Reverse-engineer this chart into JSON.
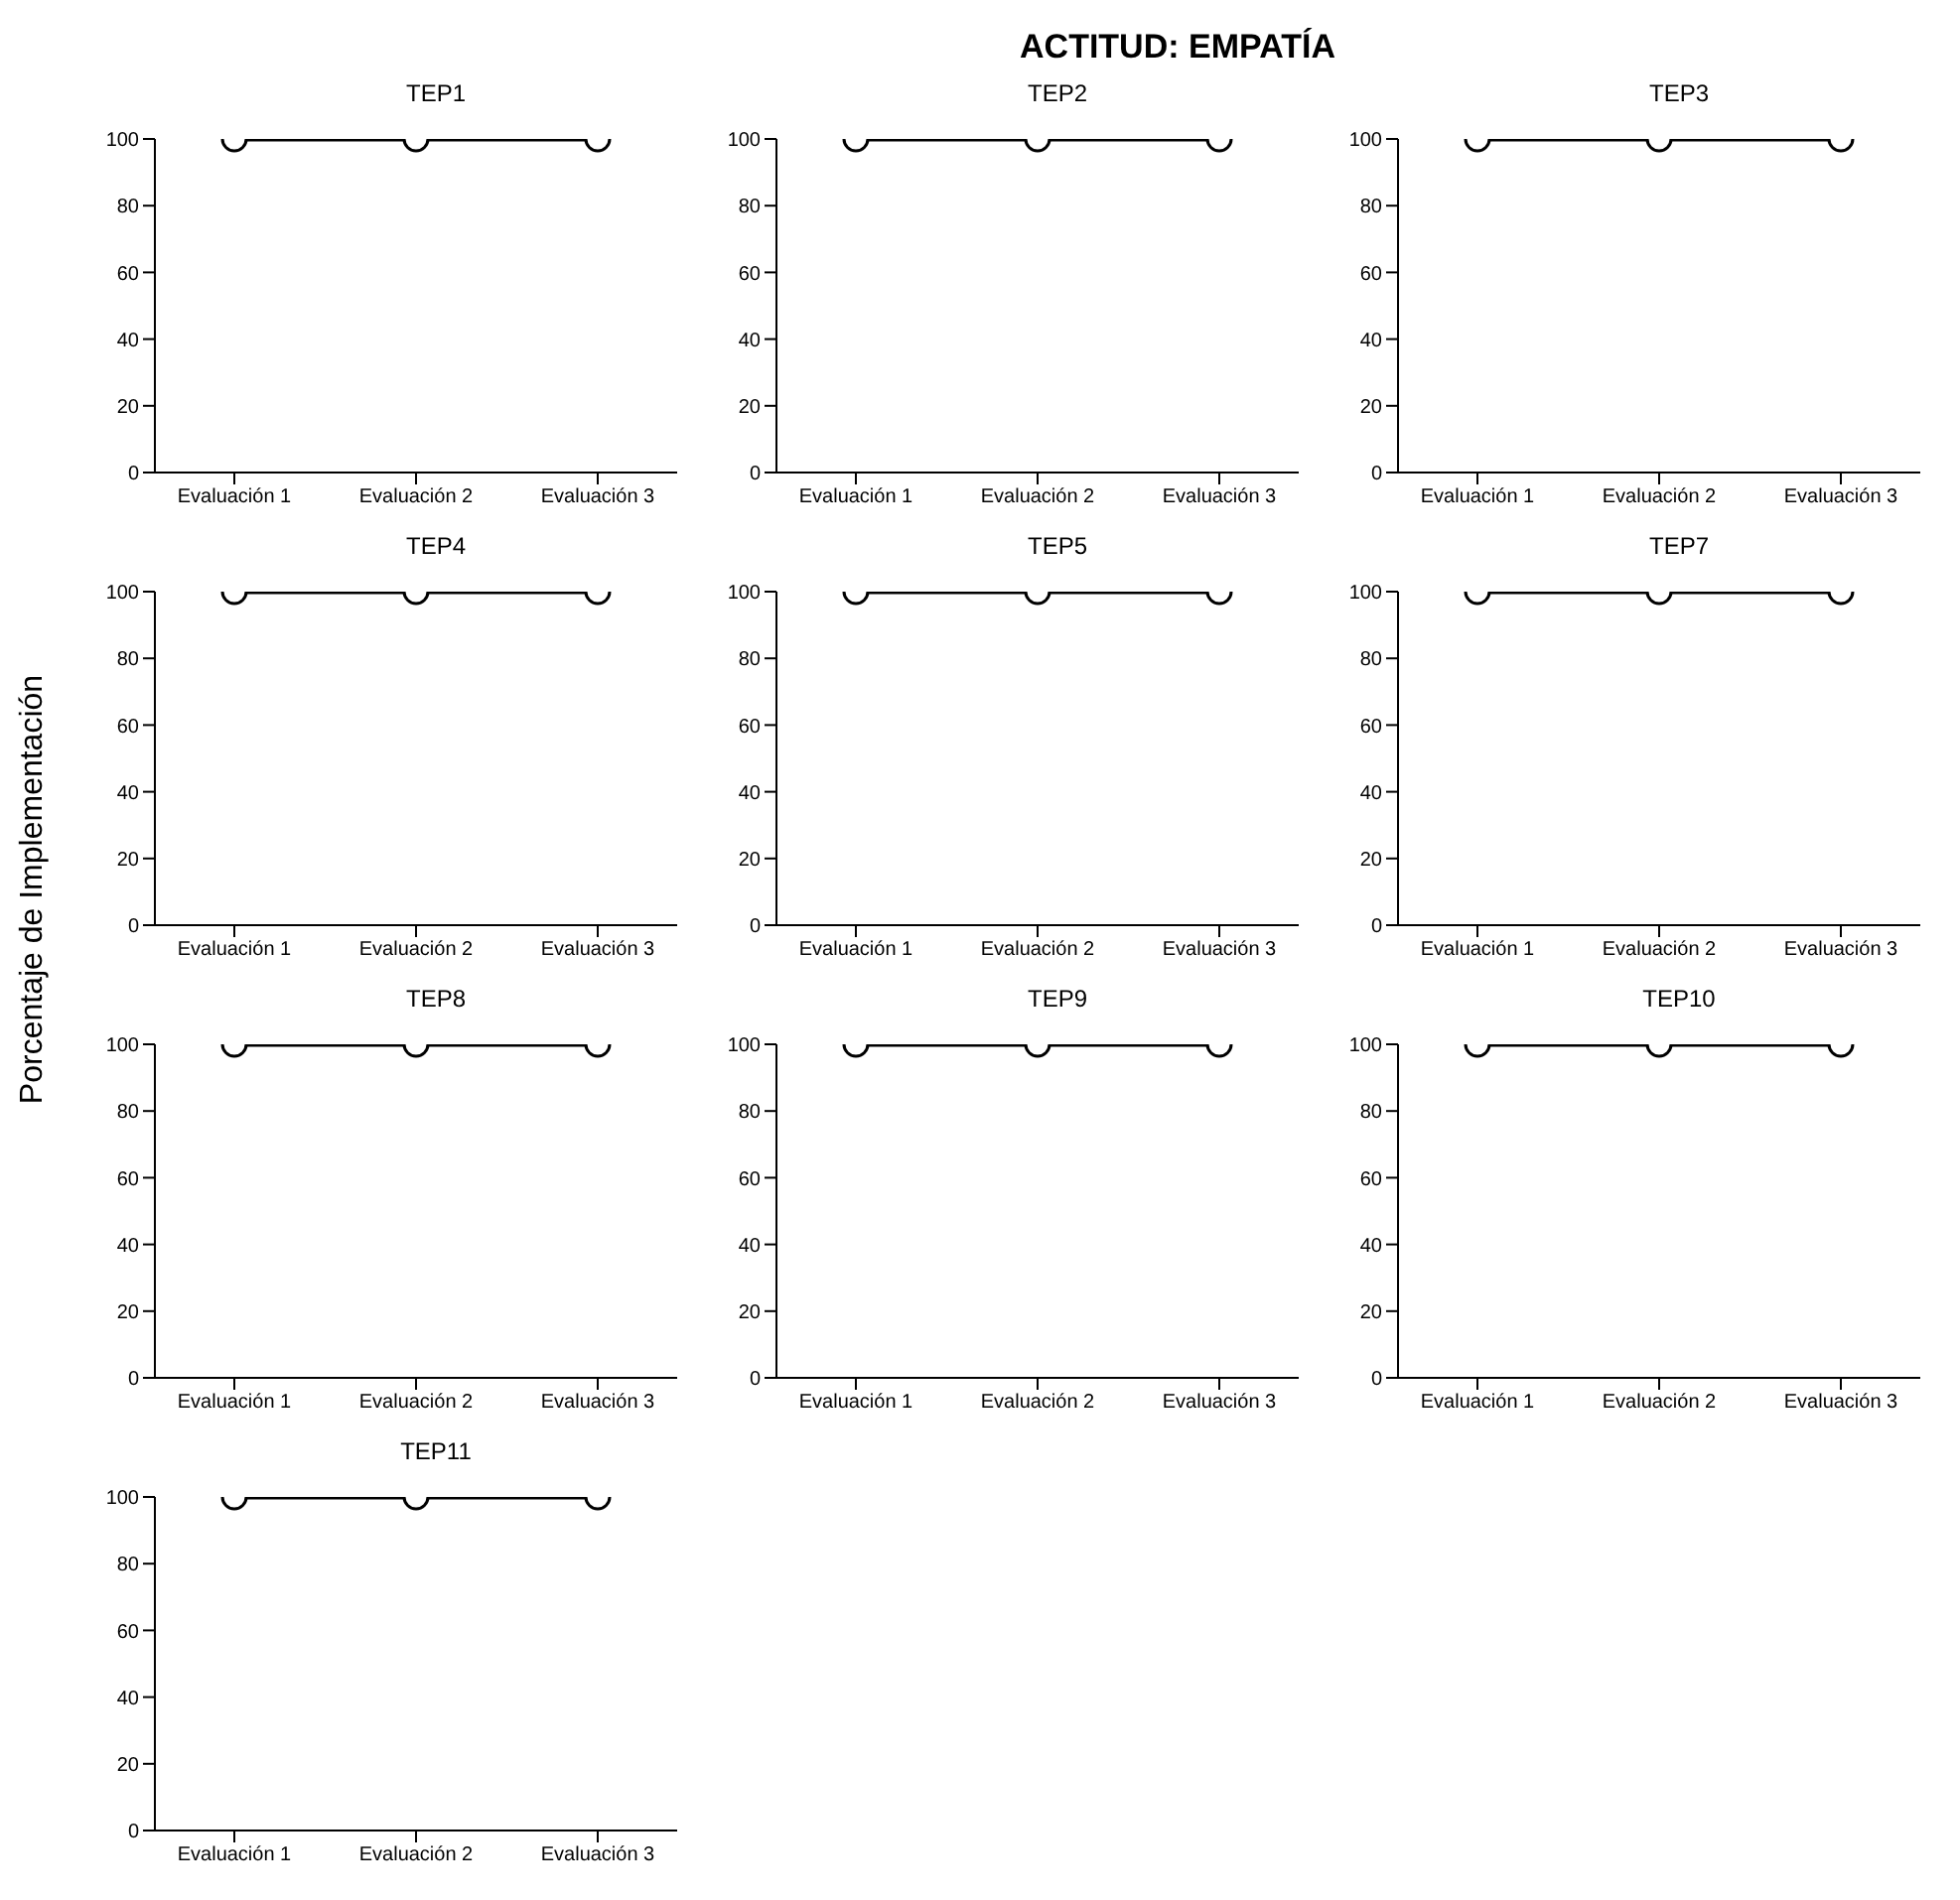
{
  "chart_data": [
    {
      "type": "other",
      "title": "ACTITUD: EMPATÍA",
      "ylabel": "Porcentaje de Implementación"
    },
    {
      "type": "line",
      "title": "TEP1",
      "categories": [
        "Evaluación 1",
        "Evaluación 2",
        "Evaluación 3"
      ],
      "ylim": [
        0,
        100
      ],
      "yticks": [
        0,
        20,
        40,
        60,
        80,
        100
      ],
      "marker": "circle",
      "series": [
        {
          "color": "#000000",
          "values": [
            100,
            100,
            100
          ]
        }
      ]
    },
    {
      "type": "line",
      "title": "TEP2",
      "categories": [
        "Evaluación 1",
        "Evaluación 2",
        "Evaluación 3"
      ],
      "ylim": [
        0,
        100
      ],
      "yticks": [
        0,
        20,
        40,
        60,
        80,
        100
      ],
      "marker": "circle",
      "series": [
        {
          "color": "#000000",
          "values": [
            100,
            100,
            100
          ]
        }
      ]
    },
    {
      "type": "line",
      "title": "TEP3",
      "categories": [
        "Evaluación 1",
        "Evaluación 2",
        "Evaluación 3"
      ],
      "ylim": [
        0,
        100
      ],
      "yticks": [
        0,
        20,
        40,
        60,
        80,
        100
      ],
      "marker": "circle",
      "series": [
        {
          "color": "#000000",
          "values": [
            100,
            100,
            100
          ]
        }
      ]
    },
    {
      "type": "line",
      "title": "TEP4",
      "categories": [
        "Evaluación 1",
        "Evaluación 2",
        "Evaluación 3"
      ],
      "ylim": [
        0,
        100
      ],
      "yticks": [
        0,
        20,
        40,
        60,
        80,
        100
      ],
      "marker": "circle",
      "series": [
        {
          "color": "#000000",
          "values": [
            100,
            100,
            100
          ]
        }
      ]
    },
    {
      "type": "line",
      "title": "TEP5",
      "categories": [
        "Evaluación 1",
        "Evaluación 2",
        "Evaluación 3"
      ],
      "ylim": [
        0,
        100
      ],
      "yticks": [
        0,
        20,
        40,
        60,
        80,
        100
      ],
      "marker": "circle",
      "series": [
        {
          "color": "#000000",
          "values": [
            100,
            100,
            100
          ]
        }
      ]
    },
    {
      "type": "line",
      "title": "TEP7",
      "categories": [
        "Evaluación 1",
        "Evaluación 2",
        "Evaluación 3"
      ],
      "ylim": [
        0,
        100
      ],
      "yticks": [
        0,
        20,
        40,
        60,
        80,
        100
      ],
      "marker": "circle",
      "series": [
        {
          "color": "#000000",
          "values": [
            100,
            100,
            100
          ]
        }
      ]
    },
    {
      "type": "line",
      "title": "TEP8",
      "categories": [
        "Evaluación 1",
        "Evaluación 2",
        "Evaluación 3"
      ],
      "ylim": [
        0,
        100
      ],
      "yticks": [
        0,
        20,
        40,
        60,
        80,
        100
      ],
      "marker": "circle",
      "series": [
        {
          "color": "#000000",
          "values": [
            100,
            100,
            100
          ]
        }
      ]
    },
    {
      "type": "line",
      "title": "TEP9",
      "categories": [
        "Evaluación 1",
        "Evaluación 2",
        "Evaluación 3"
      ],
      "ylim": [
        0,
        100
      ],
      "yticks": [
        0,
        20,
        40,
        60,
        80,
        100
      ],
      "marker": "circle",
      "series": [
        {
          "color": "#000000",
          "values": [
            100,
            100,
            100
          ]
        }
      ]
    },
    {
      "type": "line",
      "title": "TEP10",
      "categories": [
        "Evaluación 1",
        "Evaluación 2",
        "Evaluación 3"
      ],
      "ylim": [
        0,
        100
      ],
      "yticks": [
        0,
        20,
        40,
        60,
        80,
        100
      ],
      "marker": "circle",
      "series": [
        {
          "color": "#000000",
          "values": [
            100,
            100,
            100
          ]
        }
      ]
    },
    {
      "type": "line",
      "title": "TEP11",
      "categories": [
        "Evaluación 1",
        "Evaluación 2",
        "Evaluación 3"
      ],
      "ylim": [
        0,
        100
      ],
      "yticks": [
        0,
        20,
        40,
        60,
        80,
        100
      ],
      "marker": "circle",
      "series": [
        {
          "color": "#000000",
          "values": [
            100,
            100,
            100
          ]
        }
      ]
    }
  ]
}
